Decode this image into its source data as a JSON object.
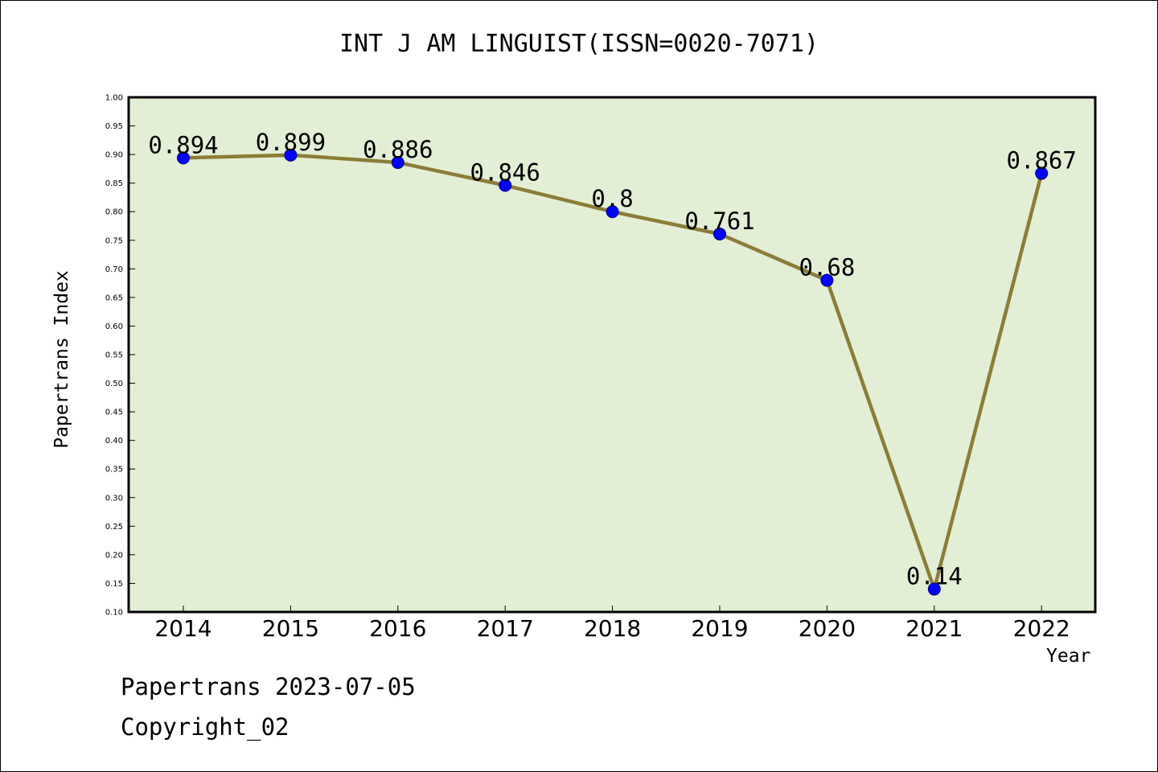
{
  "chart_data": {
    "type": "line",
    "title": "INT J AM LINGUIST(ISSN=0020-7071)",
    "xlabel": "Year",
    "ylabel": "Papertrans Index",
    "categories": [
      "2014",
      "2015",
      "2016",
      "2017",
      "2018",
      "2019",
      "2020",
      "2021",
      "2022"
    ],
    "series": [
      {
        "values": [
          0.894,
          0.899,
          0.886,
          0.846,
          0.8,
          0.761,
          0.68,
          0.14,
          0.867
        ],
        "labels": [
          "0.894",
          "0.899",
          "0.886",
          "0.846",
          "0.8",
          "0.761",
          "0.68",
          "0.14",
          "0.867"
        ]
      }
    ],
    "ylim": [
      0.1,
      1.0
    ],
    "yticks": [
      "0.10",
      "0.15",
      "0.20",
      "0.25",
      "0.30",
      "0.35",
      "0.40",
      "0.45",
      "0.50",
      "0.55",
      "0.60",
      "0.65",
      "0.70",
      "0.75",
      "0.80",
      "0.85",
      "0.90",
      "0.95",
      "1.00"
    ],
    "grid": false,
    "colors": {
      "plot_background": "#e2efd5",
      "line": "#8b7d35",
      "marker": "#0000ff",
      "marker_edge": "#000080"
    }
  },
  "footer": {
    "line1": "Papertrans 2023-07-05",
    "line2": "Copyright_02"
  }
}
